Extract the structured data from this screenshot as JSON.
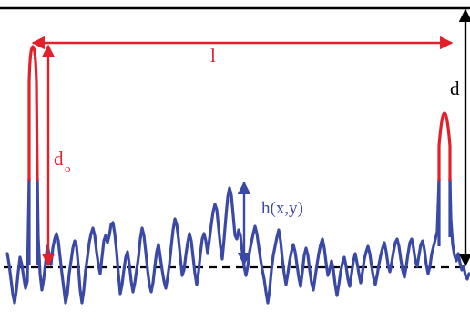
{
  "labels": {
    "length": "l",
    "depth": "d",
    "peak_depth_main": "d",
    "peak_depth_sub": "o",
    "height_function": "h(x,y)"
  },
  "colors": {
    "profile": "#3a49a5",
    "peak": "#e3202a",
    "ink": "#000000",
    "label_red": "#e3202a",
    "label_blue": "#3a49a5"
  }
}
